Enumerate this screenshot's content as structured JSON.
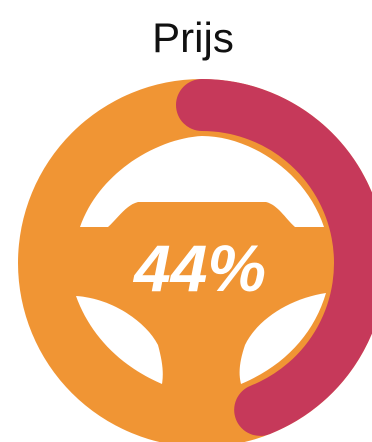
{
  "title": "Prijs",
  "gauge": {
    "label": "44%",
    "value": 0.44,
    "colors": {
      "wheel": "#F09534",
      "progress": "#C6395A",
      "cutout": "#ffffff",
      "text": "#ffffff"
    },
    "icon": "steering-wheel-icon"
  }
}
